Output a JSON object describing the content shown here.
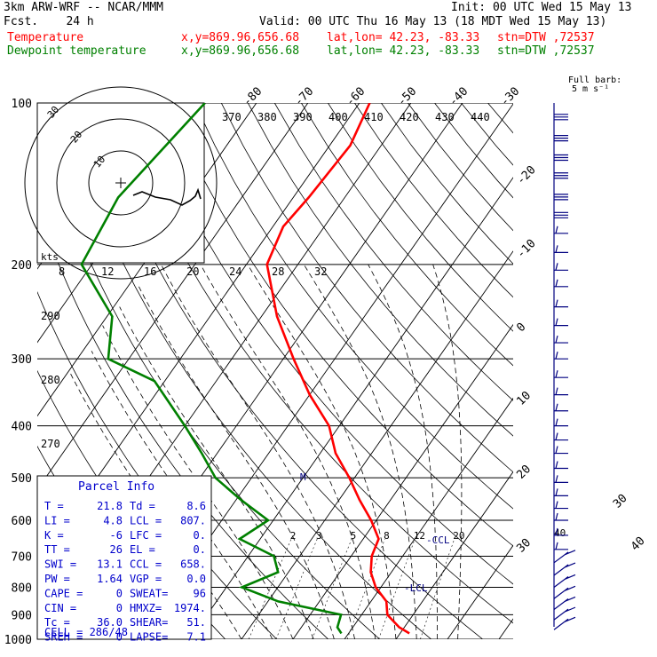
{
  "header": {
    "model": "3km ARW-WRF -- NCAR/MMM",
    "init": "Init: 00 UTC Wed 15 May 13",
    "fcst": "Fcst.    24 h",
    "valid": "Valid: 00 UTC Thu 16 May 13 (18 MDT Wed 15 May 13)",
    "temp_label": "Temperature",
    "dew_label": "Dewpoint temperature",
    "xy": "x,y=869.96,656.68",
    "latlon": "lat,lon= 42.23, -83.33",
    "stn": "stn=DTW ,72537",
    "wind_legend_1": "Full barb:",
    "wind_legend_2": "5 m s⁻¹"
  },
  "colors": {
    "temperature": "#ff0000",
    "dewpoint": "#008000",
    "barbs": "#000080",
    "parcel_title": "#0000cc",
    "hodograph": "#000000"
  },
  "chart_data": {
    "type": "skew-t",
    "pressure_levels": [
      100,
      200,
      300,
      400,
      500,
      600,
      700,
      800,
      900,
      1000
    ],
    "temperature_ticks": [
      -80,
      -70,
      -60,
      -50,
      -40,
      -30,
      -20,
      -10,
      0,
      10,
      20,
      30,
      40
    ],
    "theta_labels": [
      370,
      380,
      390,
      400,
      410,
      420,
      430,
      440
    ],
    "theta_left_labels": [
      290,
      280,
      270
    ],
    "hodo_speed_ticks": [
      8,
      12,
      16,
      20,
      24,
      28,
      32
    ],
    "hodo_speed_unit": "kts",
    "hodo_rings": [
      10,
      20,
      30
    ],
    "mixing_ratio_labels": [
      2,
      3,
      5,
      8,
      12,
      20
    ],
    "mixing_ratio_40": "40",
    "lcl_marks": [
      "LCL",
      "CCL"
    ],
    "lcl_text": "LCL",
    "ccl_text": "CCL",
    "freezing_mark": "M",
    "temperature_profile": [
      [
        100,
        -58
      ],
      [
        120,
        -56
      ],
      [
        150,
        -57
      ],
      [
        170,
        -58
      ],
      [
        200,
        -56
      ],
      [
        250,
        -47
      ],
      [
        300,
        -38
      ],
      [
        350,
        -30
      ],
      [
        400,
        -22
      ],
      [
        450,
        -17
      ],
      [
        500,
        -11
      ],
      [
        550,
        -6
      ],
      [
        600,
        -1
      ],
      [
        650,
        3
      ],
      [
        700,
        4
      ],
      [
        750,
        6
      ],
      [
        800,
        9
      ],
      [
        850,
        13
      ],
      [
        900,
        15
      ],
      [
        950,
        19
      ],
      [
        975,
        21.8
      ]
    ],
    "dewpoint_profile": [
      [
        100,
        -90
      ],
      [
        150,
        -94
      ],
      [
        200,
        -92
      ],
      [
        250,
        -79
      ],
      [
        300,
        -74
      ],
      [
        330,
        -62
      ],
      [
        400,
        -50
      ],
      [
        450,
        -43
      ],
      [
        500,
        -37
      ],
      [
        550,
        -29
      ],
      [
        600,
        -21
      ],
      [
        650,
        -24
      ],
      [
        700,
        -15
      ],
      [
        750,
        -12
      ],
      [
        800,
        -17
      ],
      [
        850,
        -8
      ],
      [
        900,
        6
      ],
      [
        950,
        7
      ],
      [
        975,
        8.6
      ]
    ],
    "wind_barbs": [
      {
        "p": 105,
        "kind": "flag"
      },
      {
        "p": 115,
        "kind": "flag"
      },
      {
        "p": 125,
        "kind": "flag"
      },
      {
        "p": 135,
        "kind": "flag"
      },
      {
        "p": 148,
        "kind": "flag"
      },
      {
        "p": 160,
        "kind": "flag"
      },
      {
        "p": 175,
        "kind": "full"
      },
      {
        "p": 190,
        "kind": "full"
      },
      {
        "p": 205,
        "kind": "full"
      },
      {
        "p": 220,
        "kind": "full"
      },
      {
        "p": 240,
        "kind": "full"
      },
      {
        "p": 260,
        "kind": "full"
      },
      {
        "p": 280,
        "kind": "full"
      },
      {
        "p": 300,
        "kind": "full"
      },
      {
        "p": 325,
        "kind": "full"
      },
      {
        "p": 350,
        "kind": "full"
      },
      {
        "p": 375,
        "kind": "full"
      },
      {
        "p": 400,
        "kind": "full"
      },
      {
        "p": 425,
        "kind": "full"
      },
      {
        "p": 450,
        "kind": "full"
      },
      {
        "p": 480,
        "kind": "full"
      },
      {
        "p": 510,
        "kind": "full"
      },
      {
        "p": 540,
        "kind": "full"
      },
      {
        "p": 570,
        "kind": "full"
      },
      {
        "p": 600,
        "kind": "full"
      },
      {
        "p": 640,
        "kind": "full"
      },
      {
        "p": 680,
        "kind": "full"
      },
      {
        "p": 720,
        "kind": "half"
      },
      {
        "p": 760,
        "kind": "half"
      },
      {
        "p": 800,
        "kind": "half"
      },
      {
        "p": 840,
        "kind": "half"
      },
      {
        "p": 880,
        "kind": "half"
      },
      {
        "p": 920,
        "kind": "half"
      },
      {
        "p": 960,
        "kind": "half"
      }
    ]
  },
  "parcel_info": {
    "title": "Parcel Info",
    "rows": [
      {
        "l1": "T   =",
        "v1": "21.8",
        "l2": "Td =",
        "v2": "8.6"
      },
      {
        "l1": "LI  =",
        "v1": "4.8",
        "l2": "LCL =",
        "v2": "807."
      },
      {
        "l1": "K   =",
        "v1": "-6",
        "l2": "LFC =",
        "v2": "0."
      },
      {
        "l1": "TT  =",
        "v1": "26",
        "l2": "EL  =",
        "v2": "0."
      },
      {
        "l1": "SWI =",
        "v1": "13.1",
        "l2": "CCL =",
        "v2": "658."
      },
      {
        "l1": "PW  =",
        "v1": "1.64",
        "l2": "VGP =",
        "v2": "0.0"
      },
      {
        "l1": "CAPE =",
        "v1": "0",
        "l2": "SWEAT=",
        "v2": "96"
      },
      {
        "l1": "CIN  =",
        "v1": "0",
        "l2": "HMXZ=",
        "v2": "1974."
      },
      {
        "l1": "Tc  =",
        "v1": "36.0",
        "l2": "SHEAR=",
        "v2": "51."
      },
      {
        "l1": "SREH =",
        "v1": "0",
        "l2": "LAPSE=",
        "v2": "7.1"
      }
    ],
    "cell": "CELL = 286/48"
  }
}
